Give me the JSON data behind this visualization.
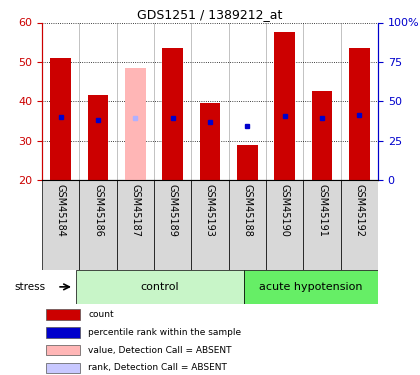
{
  "title": "GDS1251 / 1389212_at",
  "samples": [
    "GSM45184",
    "GSM45186",
    "GSM45187",
    "GSM45189",
    "GSM45193",
    "GSM45188",
    "GSM45190",
    "GSM45191",
    "GSM45192"
  ],
  "bar_heights": [
    51,
    41.5,
    48.5,
    53.5,
    39.5,
    29,
    57.5,
    42.5,
    53.5
  ],
  "bar_colors": [
    "#cc0000",
    "#cc0000",
    "#ffb6b6",
    "#cc0000",
    "#cc0000",
    "#cc0000",
    "#cc0000",
    "#cc0000",
    "#cc0000"
  ],
  "rank_values": [
    40,
    38,
    39.5,
    39.5,
    37,
    34,
    40.5,
    39.5,
    41
  ],
  "rank_colors": [
    "#0000cc",
    "#0000cc",
    "#b0b0ff",
    "#0000cc",
    "#0000cc",
    "#0000cc",
    "#0000cc",
    "#0000cc",
    "#0000cc"
  ],
  "ylim_left": [
    20,
    60
  ],
  "ylim_right": [
    0,
    100
  ],
  "yticks_left": [
    20,
    30,
    40,
    50,
    60
  ],
  "yticks_right": [
    0,
    25,
    50,
    75,
    100
  ],
  "ytick_labels_right": [
    "0",
    "25",
    "50",
    "75",
    "100%"
  ],
  "groups": [
    {
      "label": "control",
      "start": 0,
      "end": 5,
      "color": "#c8f5c8"
    },
    {
      "label": "acute hypotension",
      "start": 5,
      "end": 9,
      "color": "#66ee66"
    }
  ],
  "stress_label": "stress",
  "bar_width": 0.55,
  "left_axis_color": "#cc0000",
  "right_axis_color": "#0000cc",
  "legend_items": [
    {
      "color": "#cc0000",
      "label": "count"
    },
    {
      "color": "#0000cc",
      "label": "percentile rank within the sample"
    },
    {
      "color": "#ffb6b6",
      "label": "value, Detection Call = ABSENT"
    },
    {
      "color": "#c8c8ff",
      "label": "rank, Detection Call = ABSENT"
    }
  ]
}
